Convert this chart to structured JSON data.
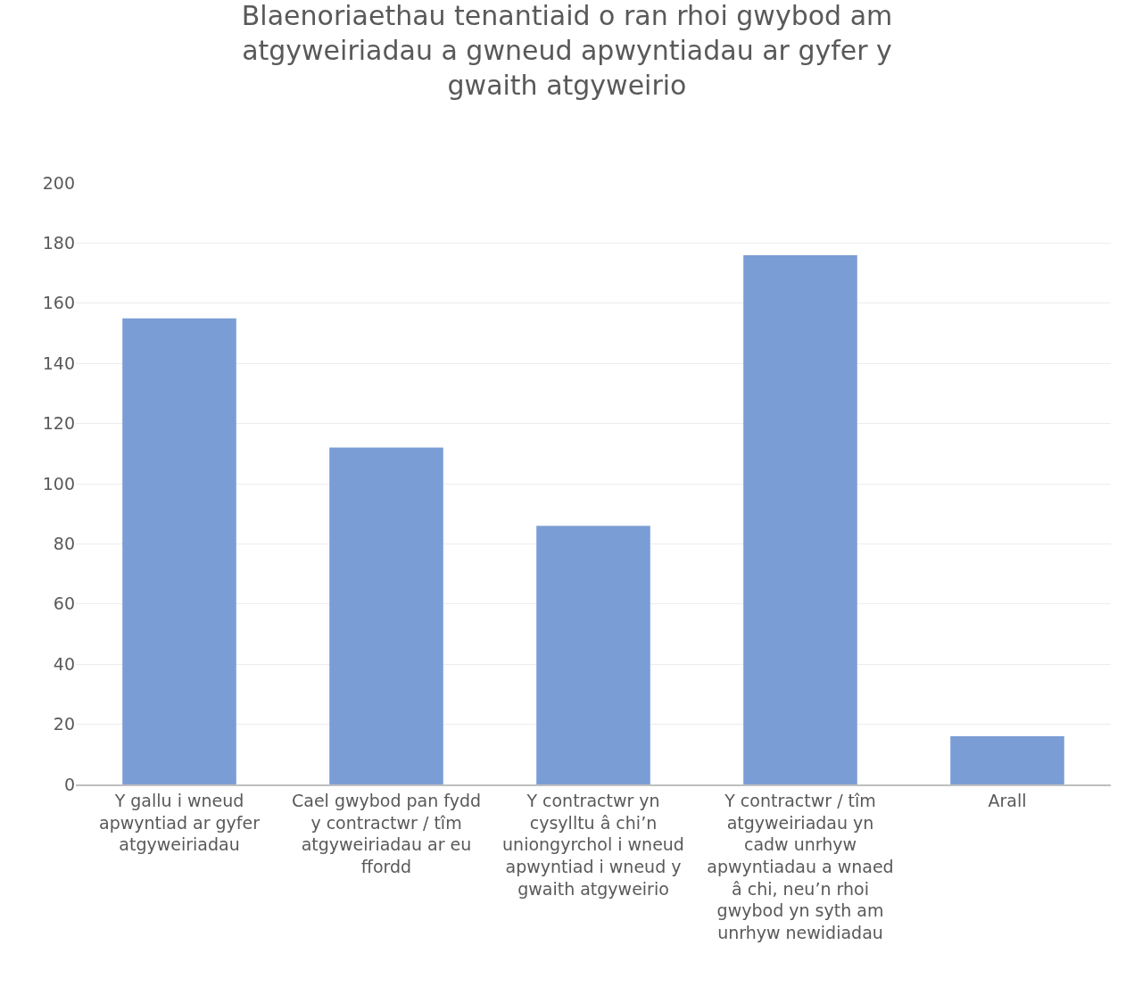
{
  "chart_data": {
    "type": "bar",
    "title": "Blaenoriaethau tenantiaid o ran rhoi gwybod am atgyweiriadau a gwneud apwyntiadau ar gyfer y gwaith atgyweirio",
    "categories": [
      "Y gallu i wneud apwyntiad ar gyfer atgyweiriadau",
      "Cael gwybod pan fydd y contractwr / tîm atgyweiriadau ar eu ffordd",
      "Y contractwr yn cysylltu â chi’n uniongyrchol i wneud apwyntiad i wneud y gwaith atgyweirio",
      "Y contractwr / tîm atgyweiriadau yn cadw unrhyw apwyntiadau a wnaed â chi, neu’n rhoi gwybod yn syth am unrhyw newidiadau",
      "Arall"
    ],
    "values": [
      155,
      112,
      86,
      176,
      16
    ],
    "color": "#7b9dd5",
    "ylim": [
      0,
      200
    ],
    "yticks": [
      0,
      20,
      40,
      60,
      80,
      100,
      120,
      140,
      160,
      180,
      200
    ],
    "grid": "y"
  }
}
